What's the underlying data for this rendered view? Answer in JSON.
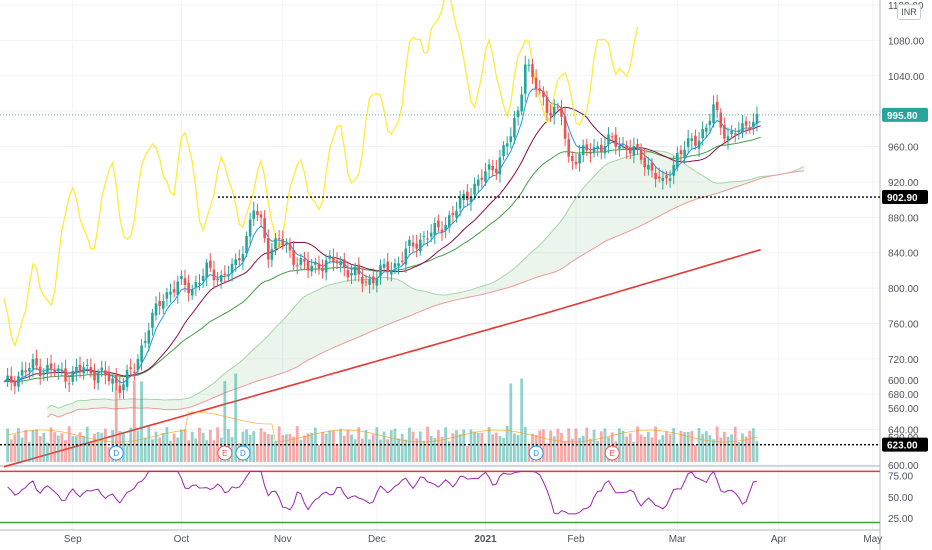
{
  "currency": "INR",
  "chart_data": [
    {
      "type": "candlestick",
      "title": "",
      "ylim": [
        600,
        1120
      ],
      "y_ticks": [
        "1120.00",
        "1080.00",
        "1040.00",
        "1000.00",
        "960.00",
        "920.00",
        "880.00",
        "840.00",
        "800.00",
        "760.00",
        "720.00",
        "680.00",
        "640.00",
        "600.00"
      ],
      "x_ticks": [
        "Sep",
        "Oct",
        "Nov",
        "Dec",
        "2021",
        "Feb",
        "Mar",
        "Apr",
        "May"
      ],
      "price_labels": [
        {
          "value": 995.8,
          "text": "995.80",
          "color": "#26a69a"
        },
        {
          "value": 902.9,
          "text": "902.90",
          "color": "#000000"
        },
        {
          "value": 623.0,
          "text": "623.00",
          "color": "#000000"
        }
      ],
      "horizontal_lines": [
        902.9,
        623.0
      ],
      "anchors": [
        [
          0,
          690
        ],
        [
          8,
          712
        ],
        [
          14,
          706
        ],
        [
          18,
          700
        ],
        [
          22,
          710
        ],
        [
          28,
          700
        ],
        [
          32,
          690
        ],
        [
          36,
          708
        ],
        [
          40,
          758
        ],
        [
          44,
          790
        ],
        [
          48,
          805
        ],
        [
          52,
          800
        ],
        [
          56,
          820
        ],
        [
          60,
          812
        ],
        [
          64,
          825
        ],
        [
          67,
          858
        ],
        [
          69,
          890
        ],
        [
          71,
          872
        ],
        [
          73,
          842
        ],
        [
          76,
          855
        ],
        [
          80,
          835
        ],
        [
          84,
          822
        ],
        [
          88,
          828
        ],
        [
          92,
          830
        ],
        [
          96,
          818
        ],
        [
          100,
          806
        ],
        [
          104,
          818
        ],
        [
          108,
          826
        ],
        [
          112,
          845
        ],
        [
          116,
          858
        ],
        [
          120,
          866
        ],
        [
          124,
          884
        ],
        [
          128,
          906
        ],
        [
          132,
          925
        ],
        [
          136,
          940
        ],
        [
          140,
          972
        ],
        [
          142,
          1000
        ],
        [
          144,
          1057
        ],
        [
          146,
          1035
        ],
        [
          150,
          1005
        ],
        [
          154,
          995
        ],
        [
          156,
          945
        ],
        [
          160,
          952
        ],
        [
          164,
          960
        ],
        [
          168,
          966
        ],
        [
          172,
          960
        ],
        [
          176,
          948
        ],
        [
          180,
          928
        ],
        [
          182,
          915
        ],
        [
          186,
          950
        ],
        [
          190,
          965
        ],
        [
          194,
          980
        ],
        [
          196,
          1003
        ],
        [
          200,
          970
        ],
        [
          204,
          980
        ],
        [
          206,
          990
        ]
      ],
      "ema_fast_color": "#2196f3",
      "ema_slow_color": "#880e4f",
      "ma_green_color": "#43a047",
      "ma_long_color": "#e53935",
      "lagging_color": "#ffeb3b",
      "up_color": "#26a69a",
      "down_color": "#ef5350"
    },
    {
      "type": "bar",
      "title": "",
      "y_ticks": [
        "600.00",
        "560.00",
        "520.00"
      ],
      "markers": [
        {
          "index": 31,
          "label": "D",
          "kind": "dividend"
        },
        {
          "index": 61,
          "label": "E",
          "kind": "earnings"
        },
        {
          "index": 66,
          "label": "D",
          "kind": "dividend"
        },
        {
          "index": 147,
          "label": "D",
          "kind": "dividend"
        },
        {
          "index": 168,
          "label": "E",
          "kind": "earnings"
        }
      ]
    },
    {
      "type": "line",
      "title": "",
      "ylim": [
        0,
        100
      ],
      "y_ticks": [
        "75.00",
        "50.00",
        "25.00"
      ],
      "bands": [
        80,
        20
      ],
      "line_color": "#9c27b0"
    }
  ]
}
